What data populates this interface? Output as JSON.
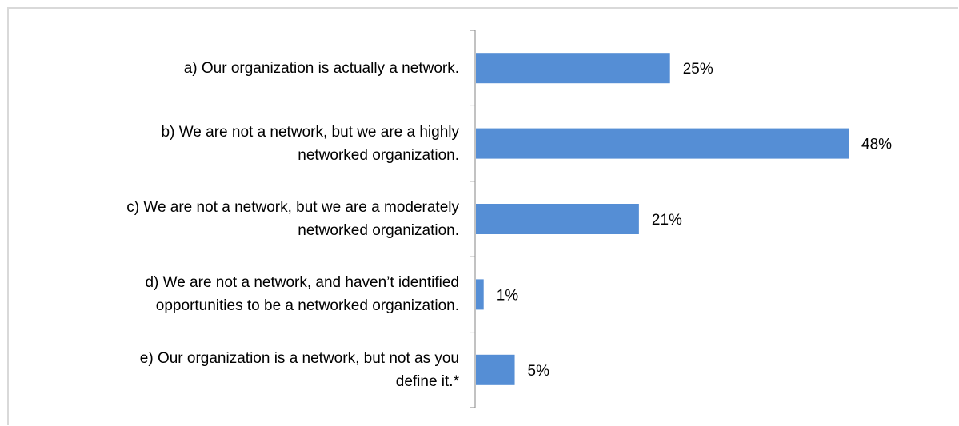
{
  "chart_data": {
    "type": "bar",
    "orientation": "horizontal",
    "categories": [
      "a) Our organization is actually a network.",
      "b) We are not a network, but we are a highly networked organization.",
      "c) We are not a network, but we are a moderately networked organization.",
      "d) We are not a network, and haven’t identified opportunities to be a networked organization.",
      "e) Our organization is a network, but not as you define it.*"
    ],
    "values": [
      25,
      48,
      21,
      1,
      5
    ],
    "value_labels": [
      "25%",
      "48%",
      "21%",
      "1%",
      "5%"
    ],
    "value_unit": "%",
    "bar_color": "#558ED5",
    "xlim": [
      0,
      50
    ],
    "grid": false,
    "legend": "none"
  }
}
